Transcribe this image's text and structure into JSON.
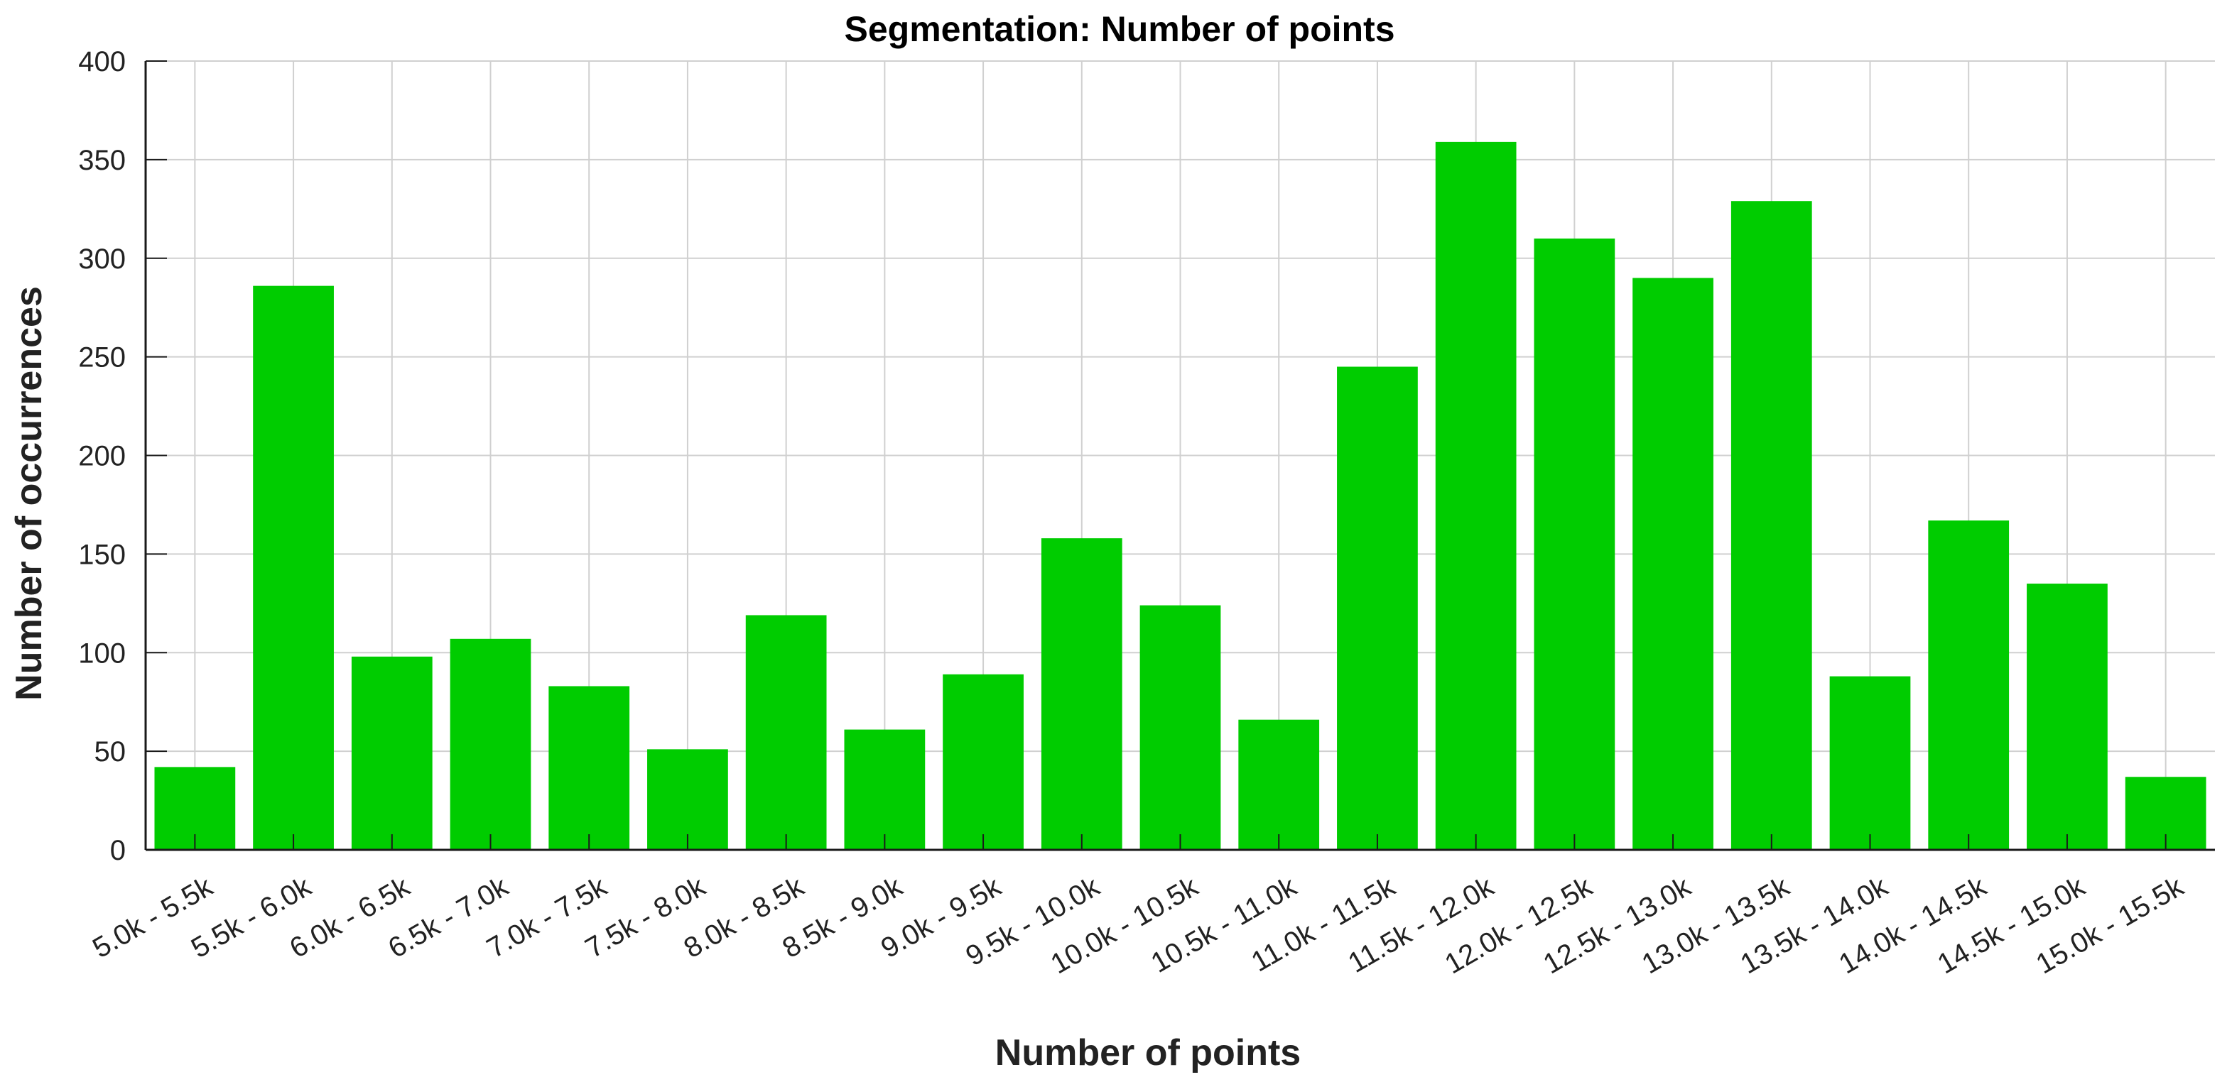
{
  "chart_data": {
    "type": "bar",
    "title": "Segmentation: Number of points",
    "xlabel": "Number of points",
    "ylabel": "Number of occurrences",
    "categories": [
      "5.0k - 5.5k",
      "5.5k - 6.0k",
      "6.0k - 6.5k",
      "6.5k - 7.0k",
      "7.0k - 7.5k",
      "7.5k - 8.0k",
      "8.0k - 8.5k",
      "8.5k - 9.0k",
      "9.0k - 9.5k",
      "9.5k - 10.0k",
      "10.0k - 10.5k",
      "10.5k - 11.0k",
      "11.0k - 11.5k",
      "11.5k - 12.0k",
      "12.0k - 12.5k",
      "12.5k - 13.0k",
      "13.0k - 13.5k",
      "13.5k - 14.0k",
      "14.0k - 14.5k",
      "14.5k - 15.0k",
      "15.0k - 15.5k"
    ],
    "values": [
      42,
      286,
      98,
      107,
      83,
      51,
      119,
      61,
      89,
      158,
      124,
      66,
      245,
      359,
      310,
      290,
      329,
      88,
      167,
      135,
      37
    ],
    "ylim": [
      0,
      400
    ],
    "yticks": [
      0,
      50,
      100,
      150,
      200,
      250,
      300,
      350,
      400
    ],
    "grid": true,
    "bar_color": "#00cc00"
  }
}
